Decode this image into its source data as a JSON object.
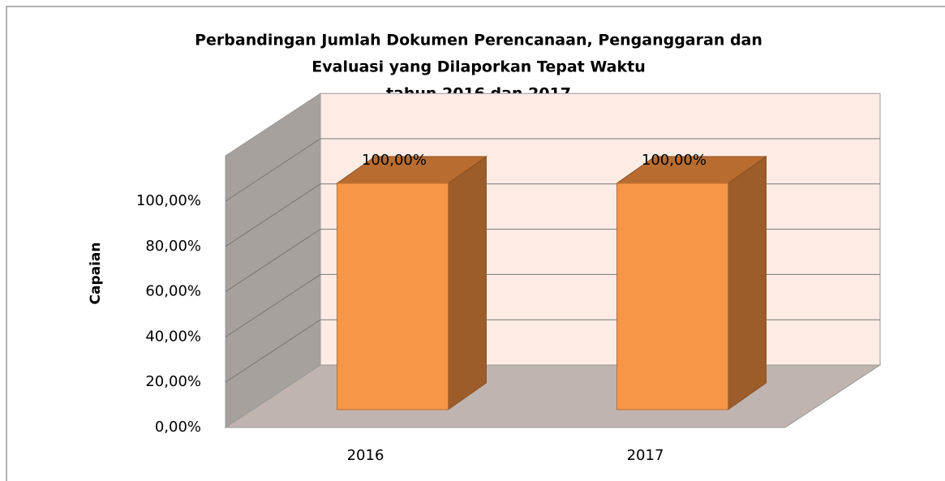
{
  "chart_data": {
    "type": "bar3d",
    "title": [
      "Perbandingan Jumlah Dokumen Perencanaan, Penganggaran dan",
      "Evaluasi yang Dilaporkan Tepat Waktu",
      "tahun 2016 dan 2017"
    ],
    "y_axis_label": "Capaian",
    "categories": [
      "2016",
      "2017"
    ],
    "values": [
      100,
      100
    ],
    "value_labels": [
      "100,00%",
      "100,00%"
    ],
    "color": "#f79646",
    "ylim": [
      0,
      120
    ],
    "yticks": [
      {
        "value": 0,
        "label": "0,00%"
      },
      {
        "value": 20,
        "label": "20,00%"
      },
      {
        "value": 40,
        "label": "40,00%"
      },
      {
        "value": 60,
        "label": "60,00%"
      },
      {
        "value": 80,
        "label": "80,00%"
      },
      {
        "value": 100,
        "label": "100,00%"
      }
    ],
    "grid": true
  }
}
